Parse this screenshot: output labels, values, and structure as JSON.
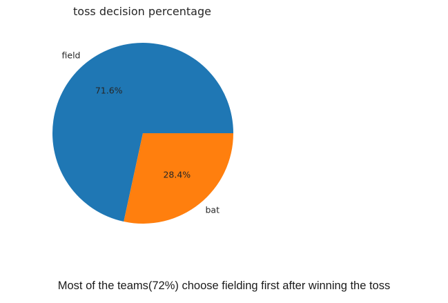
{
  "chart_data": {
    "type": "pie",
    "title": "toss decision percentage",
    "categories": [
      "field",
      "bat"
    ],
    "values": [
      71.6,
      28.4
    ],
    "value_labels": [
      "71.6%",
      "28.4%"
    ],
    "colors": [
      "#1f77b4",
      "#ff7f0e"
    ],
    "start_angle": 0,
    "direction": "counterclockwise"
  },
  "caption": "Most of the teams(72%) choose fielding first after winning the toss"
}
